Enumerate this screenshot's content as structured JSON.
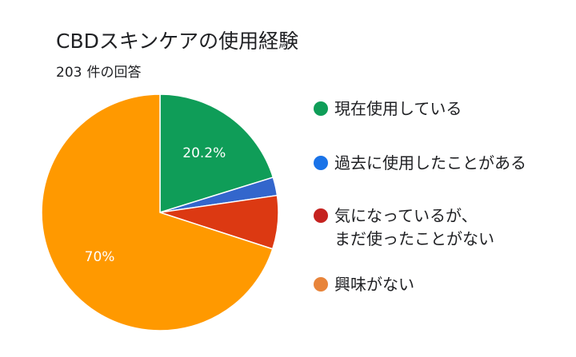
{
  "chart_data": {
    "type": "pie",
    "title": "CBDスキンケアの使用経験",
    "subtitle_count": "203",
    "subtitle_suffix": "件の回答",
    "slices": [
      {
        "label": "現在使用している",
        "value": 20.2,
        "color": "#0f9d58",
        "data_label": "20.2%"
      },
      {
        "label": "過去に使用したことがある",
        "value": 2.5,
        "color": "#3366cc",
        "data_label": ""
      },
      {
        "label": "気になっているが、\nまだ使ったことがない",
        "value": 7.3,
        "color": "#dc3912",
        "data_label": ""
      },
      {
        "label": "興味がない",
        "value": 70.0,
        "color": "#ff9900",
        "data_label": "70%"
      }
    ],
    "legend_colors": [
      "#0f9d58",
      "#1a73e8",
      "#c5221f",
      "#e8843a"
    ],
    "start_angle_deg": 90,
    "direction": "counterclockwise",
    "legend": "right"
  }
}
